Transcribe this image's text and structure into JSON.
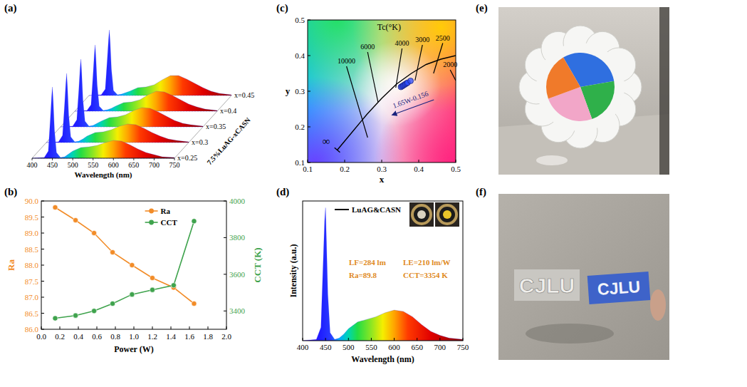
{
  "panel_labels": [
    "(a)",
    "(b)",
    "(c)",
    "(d)",
    "(e)",
    "(f)"
  ],
  "chart_data": [
    {
      "type": "waterfall",
      "xlabel": "Wavelength (nm)",
      "zlabel": "7.5%LuAG-xCASN",
      "x": [
        400,
        430,
        440,
        445,
        448,
        450,
        452,
        455,
        460,
        470,
        480,
        490,
        500,
        520,
        540,
        560,
        580,
        600,
        620,
        640,
        660,
        680,
        700,
        720,
        750
      ],
      "series": [
        {
          "name": "x=0.25",
          "values": [
            0,
            0.01,
            0.1,
            0.55,
            0.85,
            1.0,
            0.8,
            0.4,
            0.08,
            0.01,
            0.02,
            0.06,
            0.1,
            0.15,
            0.16,
            0.18,
            0.22,
            0.25,
            0.24,
            0.19,
            0.13,
            0.08,
            0.05,
            0.02,
            0.01
          ]
        },
        {
          "name": "x=0.3",
          "values": [
            0,
            0.01,
            0.1,
            0.53,
            0.82,
            0.97,
            0.78,
            0.39,
            0.08,
            0.01,
            0.02,
            0.05,
            0.09,
            0.14,
            0.15,
            0.18,
            0.23,
            0.26,
            0.25,
            0.2,
            0.14,
            0.09,
            0.05,
            0.03,
            0.01
          ]
        },
        {
          "name": "x=0.35",
          "values": [
            0,
            0.01,
            0.1,
            0.52,
            0.81,
            0.95,
            0.76,
            0.38,
            0.08,
            0.01,
            0.02,
            0.05,
            0.08,
            0.13,
            0.14,
            0.17,
            0.23,
            0.27,
            0.26,
            0.21,
            0.15,
            0.09,
            0.05,
            0.03,
            0.01
          ]
        },
        {
          "name": "x=0.4",
          "values": [
            0,
            0.01,
            0.09,
            0.51,
            0.79,
            0.93,
            0.74,
            0.37,
            0.07,
            0.01,
            0.02,
            0.04,
            0.07,
            0.12,
            0.13,
            0.16,
            0.23,
            0.28,
            0.27,
            0.22,
            0.16,
            0.1,
            0.06,
            0.03,
            0.01
          ]
        },
        {
          "name": "x=0.45",
          "values": [
            0,
            0.01,
            0.09,
            0.51,
            0.78,
            0.92,
            0.74,
            0.37,
            0.07,
            0.01,
            0.02,
            0.04,
            0.06,
            0.11,
            0.12,
            0.15,
            0.22,
            0.28,
            0.28,
            0.23,
            0.17,
            0.11,
            0.06,
            0.03,
            0.01
          ]
        }
      ],
      "xlim": [
        400,
        750
      ],
      "xticks": [
        400,
        450,
        500,
        550,
        600,
        650,
        700,
        750
      ],
      "ylim": [
        0,
        1.1
      ],
      "tick_labels": "x"
    },
    {
      "type": "line",
      "xlabel": "Power (W)",
      "ylabel": "Ra",
      "y2label": "CCT (K)",
      "x": [
        0.15,
        0.37,
        0.57,
        0.77,
        0.98,
        1.2,
        1.43,
        1.65
      ],
      "series": [
        {
          "name": "Ra",
          "color": "#f28c28",
          "marker": "circle",
          "values": [
            89.8,
            89.4,
            89.0,
            88.4,
            88.0,
            87.6,
            87.3,
            86.8
          ]
        },
        {
          "name": "CCT",
          "color": "#3fa34d",
          "marker": "circle",
          "axis": "y2",
          "values": [
            3360,
            3375,
            3400,
            3440,
            3490,
            3515,
            3540,
            3890
          ]
        }
      ],
      "xlim": [
        0,
        2
      ],
      "xticks": [
        {
          "value": 0,
          "label": "0.0"
        },
        {
          "value": 0.2,
          "label": "0.2"
        },
        {
          "value": 0.4,
          "label": "0.4"
        },
        {
          "value": 0.6,
          "label": "0.6"
        },
        {
          "value": 0.8,
          "label": "0.8"
        },
        {
          "value": 1,
          "label": "1.0"
        },
        {
          "value": 1.2,
          "label": "1.2"
        },
        {
          "value": 1.4,
          "label": "1.4"
        },
        {
          "value": 1.6,
          "label": "1.6"
        },
        {
          "value": 1.8,
          "label": "1.8"
        },
        {
          "value": 2,
          "label": "2.0"
        }
      ],
      "ylim": [
        86,
        90
      ],
      "yticks": [
        {
          "value": 86,
          "label": "86.0"
        },
        {
          "value": 86.5,
          "label": "86.5"
        },
        {
          "value": 87,
          "label": "87.0"
        },
        {
          "value": 87.5,
          "label": "87.5"
        },
        {
          "value": 88,
          "label": "88.0"
        },
        {
          "value": 88.5,
          "label": "88.5"
        },
        {
          "value": 89,
          "label": "89.0"
        },
        {
          "value": 89.5,
          "label": "89.5"
        },
        {
          "value": 90,
          "label": "90.0"
        }
      ],
      "y2lim": [
        3300,
        4000
      ],
      "y2ticks": [
        3400,
        3600,
        3800,
        4000
      ],
      "legend": "upper right"
    },
    {
      "type": "scatter",
      "title": "Tc(°K)",
      "xlabel": "x",
      "ylabel": "y",
      "x": [
        0.352,
        0.355,
        0.358,
        0.361,
        0.364,
        0.367,
        0.37,
        0.378
      ],
      "values": [
        0.312,
        0.314,
        0.316,
        0.318,
        0.32,
        0.322,
        0.324,
        0.329
      ],
      "color": "#2b4cff",
      "marker": "circle",
      "locus": {
        "x": [
          0.18,
          0.22,
          0.26,
          0.3,
          0.34,
          0.38,
          0.42,
          0.46,
          0.5
        ],
        "y": [
          0.135,
          0.185,
          0.235,
          0.28,
          0.32,
          0.35,
          0.375,
          0.39,
          0.4
        ]
      },
      "isotherms": [
        {
          "label": "10000",
          "x": [
            0.205,
            0.262
          ],
          "y": [
            0.37,
            0.17
          ]
        },
        {
          "label": "6000",
          "x": [
            0.262,
            0.29
          ],
          "y": [
            0.41,
            0.27
          ]
        },
        {
          "label": "4000",
          "x": [
            0.355,
            0.338
          ],
          "y": [
            0.42,
            0.31
          ]
        },
        {
          "label": "3000",
          "x": [
            0.41,
            0.39
          ],
          "y": [
            0.43,
            0.33
          ]
        },
        {
          "label": "2500",
          "x": [
            0.465,
            0.44
          ],
          "y": [
            0.435,
            0.35
          ]
        },
        {
          "label": "2000",
          "x": [
            0.485,
            0.5
          ],
          "y": [
            0.36,
            0.33
          ]
        }
      ],
      "annotations": [
        {
          "text": "∞",
          "x": 0.15,
          "y": 0.15
        },
        {
          "text": "1.65W-0.156",
          "x": 0.38,
          "y": 0.27
        }
      ],
      "xlim": [
        0.1,
        0.5
      ],
      "xticks": [
        0.1,
        0.2,
        0.3,
        0.4,
        0.5
      ],
      "ylim": [
        0.1,
        0.5
      ],
      "yticks": [
        0.1,
        0.2,
        0.3,
        0.4,
        0.5
      ]
    },
    {
      "type": "area",
      "xlabel": "Wavelength (nm)",
      "ylabel": "Intensity (a.u.)",
      "x": [
        400,
        430,
        440,
        445,
        448,
        450,
        452,
        455,
        460,
        470,
        480,
        490,
        500,
        520,
        540,
        560,
        580,
        600,
        620,
        640,
        660,
        680,
        700,
        720,
        750
      ],
      "series": [
        {
          "name": "LuAG&CASN",
          "color": "#000000",
          "values": [
            0,
            0.01,
            0.1,
            0.6,
            0.9,
            1.0,
            0.75,
            0.35,
            0.06,
            0.01,
            0.02,
            0.05,
            0.09,
            0.14,
            0.16,
            0.18,
            0.21,
            0.23,
            0.22,
            0.18,
            0.12,
            0.07,
            0.04,
            0.02,
            0.01
          ]
        }
      ],
      "annotations": [
        "LF=284 lm",
        "LE=210 lm/W",
        "Ra=89.8",
        "CCT=3354 K"
      ],
      "xlim": [
        400,
        750
      ],
      "xticks": [
        400,
        450,
        500,
        550,
        600,
        650,
        700,
        750
      ],
      "ylim": [
        0,
        1.05
      ],
      "tick_labels": "x",
      "legend": "upper left"
    }
  ],
  "photo_texts": [
    "CJLU",
    "CJLU"
  ]
}
